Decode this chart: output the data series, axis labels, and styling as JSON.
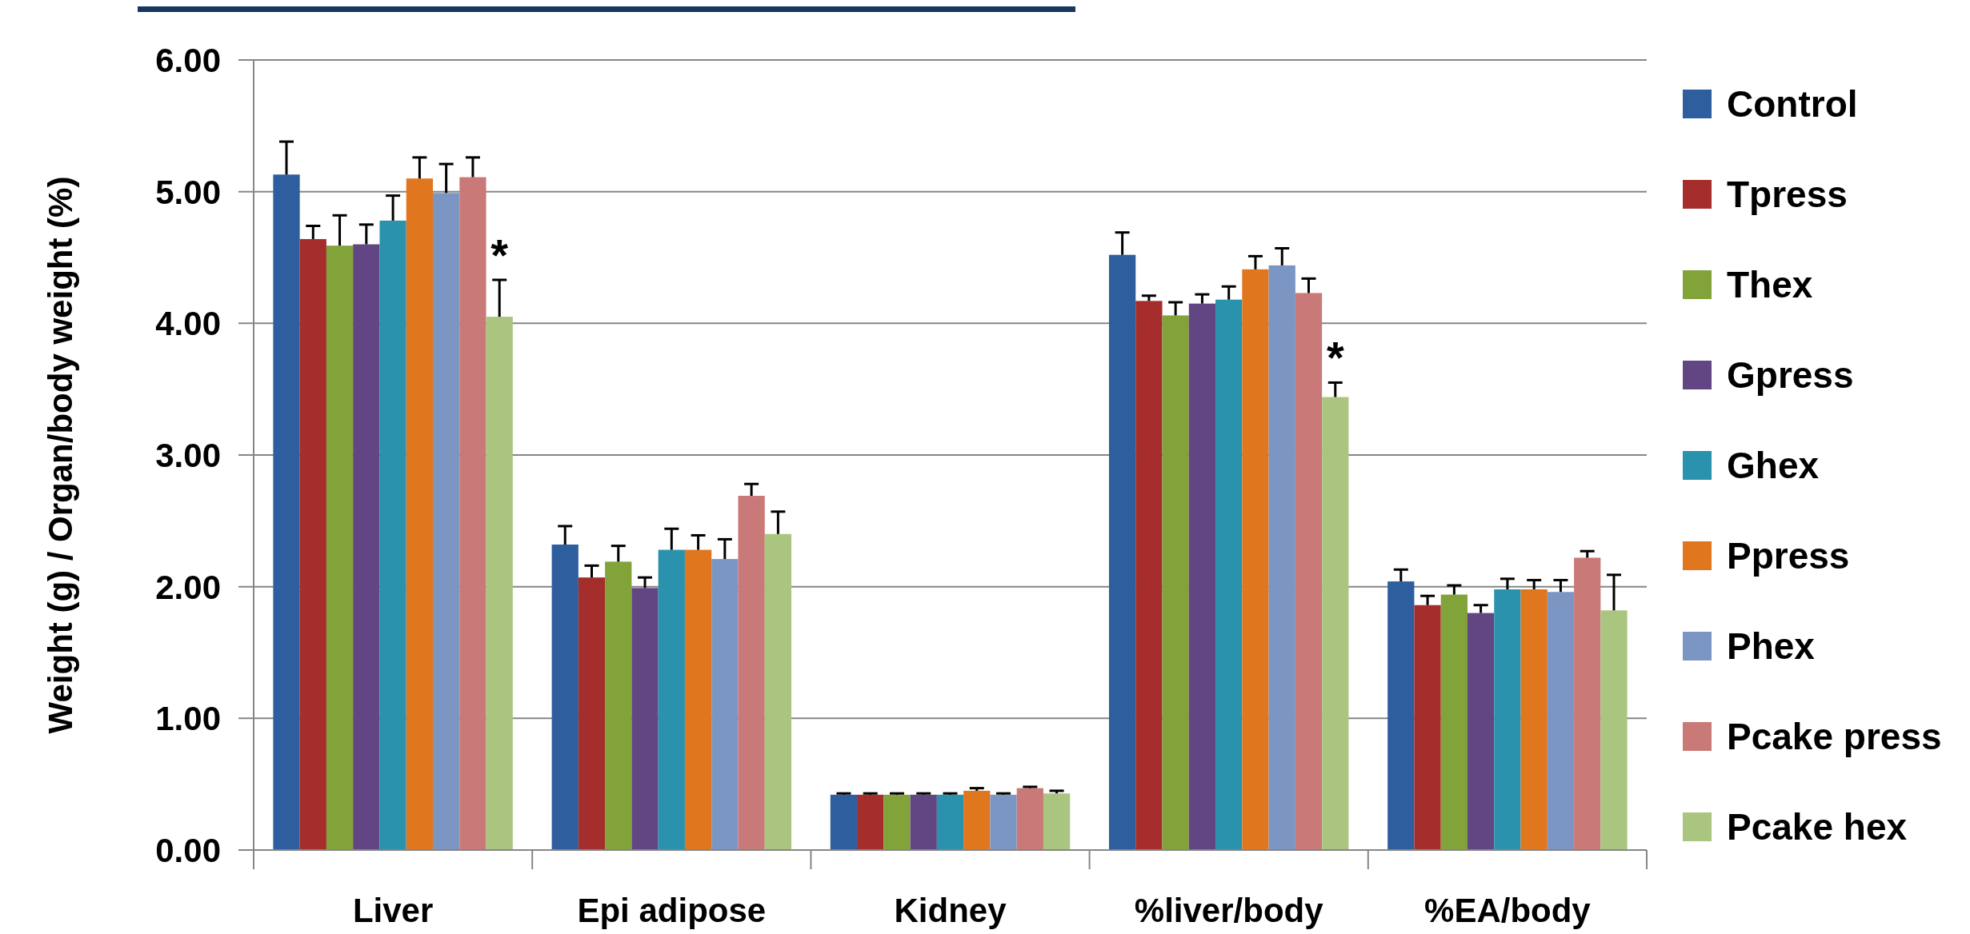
{
  "chart_data": {
    "type": "bar",
    "ylabel": "Weight (g) /  Organ/body weight (%)",
    "categories": [
      "Liver",
      "Epi adipose",
      "Kidney",
      "%liver/body",
      "%EA/body"
    ],
    "series": [
      {
        "name": "Control",
        "color": "#2e5e9e",
        "values": [
          5.13,
          2.32,
          0.42,
          4.52,
          2.04
        ],
        "errors": [
          0.25,
          0.14,
          0.01,
          0.17,
          0.09
        ]
      },
      {
        "name": "Tpress",
        "color": "#a52e2c",
        "values": [
          4.64,
          2.07,
          0.42,
          4.17,
          1.86
        ],
        "errors": [
          0.1,
          0.09,
          0.01,
          0.04,
          0.07
        ]
      },
      {
        "name": "Thex",
        "color": "#82a23a",
        "values": [
          4.59,
          2.19,
          0.42,
          4.06,
          1.94
        ],
        "errors": [
          0.23,
          0.12,
          0.01,
          0.1,
          0.07
        ]
      },
      {
        "name": "Gpress",
        "color": "#624684",
        "values": [
          4.6,
          1.99,
          0.42,
          4.15,
          1.8
        ],
        "errors": [
          0.15,
          0.08,
          0.01,
          0.07,
          0.06
        ]
      },
      {
        "name": "Ghex",
        "color": "#2a92ac",
        "values": [
          4.78,
          2.28,
          0.42,
          4.18,
          1.98
        ],
        "errors": [
          0.19,
          0.16,
          0.01,
          0.1,
          0.08
        ]
      },
      {
        "name": "Ppress",
        "color": "#e0761e",
        "values": [
          5.1,
          2.28,
          0.45,
          4.41,
          1.98
        ],
        "errors": [
          0.16,
          0.11,
          0.02,
          0.1,
          0.07
        ]
      },
      {
        "name": "Phex",
        "color": "#7c96c4",
        "values": [
          4.99,
          2.21,
          0.42,
          4.44,
          1.96
        ],
        "errors": [
          0.22,
          0.15,
          0.01,
          0.13,
          0.09
        ]
      },
      {
        "name": "Pcake press",
        "color": "#c97a78",
        "values": [
          5.11,
          2.69,
          0.47,
          4.23,
          2.22
        ],
        "errors": [
          0.15,
          0.09,
          0.01,
          0.11,
          0.05
        ]
      },
      {
        "name": "Pcake hex",
        "color": "#aac580",
        "values": [
          4.05,
          2.4,
          0.43,
          3.44,
          1.82
        ],
        "errors": [
          0.28,
          0.17,
          0.02,
          0.11,
          0.27
        ]
      }
    ],
    "ylim": [
      0,
      6
    ],
    "yticks": [
      {
        "value": 0,
        "label": "0.00"
      },
      {
        "value": 1,
        "label": "1.00"
      },
      {
        "value": 2,
        "label": "2.00"
      },
      {
        "value": 3,
        "label": "3.00"
      },
      {
        "value": 4,
        "label": "4.00"
      },
      {
        "value": 5,
        "label": "5.00"
      },
      {
        "value": 6,
        "label": "6.00"
      }
    ],
    "grid": "y",
    "legend": "right",
    "annotations": [
      "*",
      "*"
    ]
  }
}
